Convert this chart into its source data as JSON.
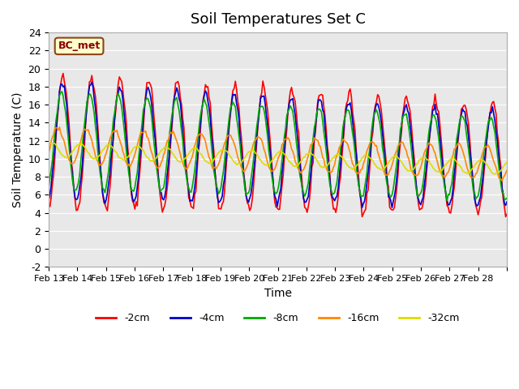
{
  "title": "Soil Temperatures Set C",
  "xlabel": "Time",
  "ylabel": "Soil Temperature (C)",
  "ylim": [
    -2,
    24
  ],
  "yticks": [
    -2,
    0,
    2,
    4,
    6,
    8,
    10,
    12,
    14,
    16,
    18,
    20,
    22,
    24
  ],
  "annotation": "BC_met",
  "colors": {
    "-2cm": "#FF0000",
    "-4cm": "#0000CC",
    "-8cm": "#00AA00",
    "-16cm": "#FF8800",
    "-32cm": "#DDDD00"
  },
  "legend_labels": [
    "-2cm",
    "-4cm",
    "-8cm",
    "-16cm",
    "-32cm"
  ],
  "x_tick_labels": [
    "Feb 13",
    "Feb 14",
    "Feb 15",
    "Feb 16",
    "Feb 17",
    "Feb 18",
    "Feb 19",
    "Feb 20",
    "Feb 21",
    "Feb 22",
    "Feb 23",
    "Feb 24",
    "Feb 25",
    "Feb 26",
    "Feb 27",
    "Feb 28"
  ],
  "n_days": 16,
  "pts_per_day": 24,
  "background_color": "#E8E8E8",
  "title_fontsize": 13,
  "axis_fontsize": 9,
  "label_fontsize": 10
}
